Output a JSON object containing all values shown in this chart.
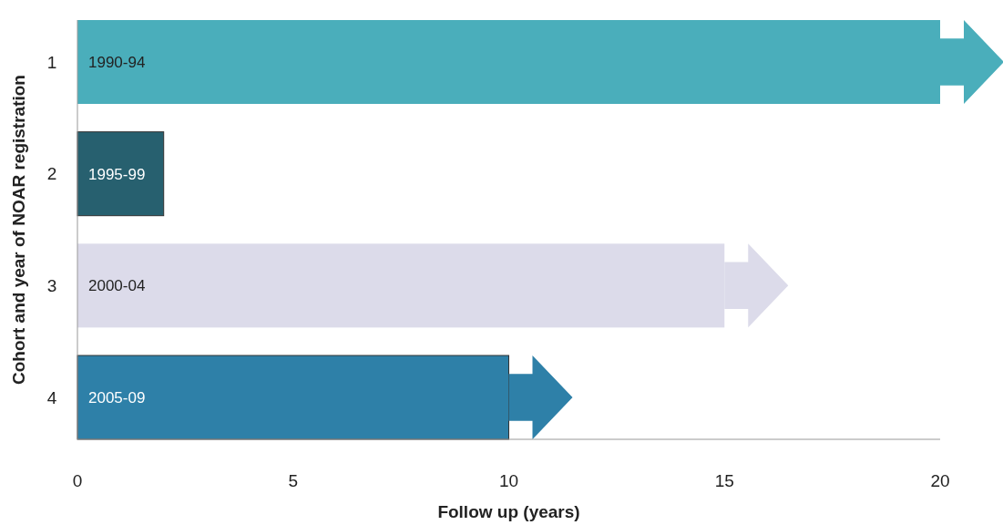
{
  "chart_data": {
    "type": "bar",
    "orientation": "horizontal",
    "xlabel": "Follow up (years)",
    "ylabel": "Cohort and year of NOAR registration",
    "categories": [
      "1",
      "2",
      "3",
      "4"
    ],
    "values": [
      20,
      2,
      15,
      10
    ],
    "colors": [
      "#4aaebb",
      "#27606f",
      "#dcdbea",
      "#2e80a8"
    ],
    "xlim": [
      0,
      20
    ],
    "xticks": [
      0,
      5,
      10,
      15,
      20
    ],
    "grid": false,
    "annotations": [
      "1990-94",
      "1995-99",
      "2000-04",
      "2005-09"
    ]
  }
}
